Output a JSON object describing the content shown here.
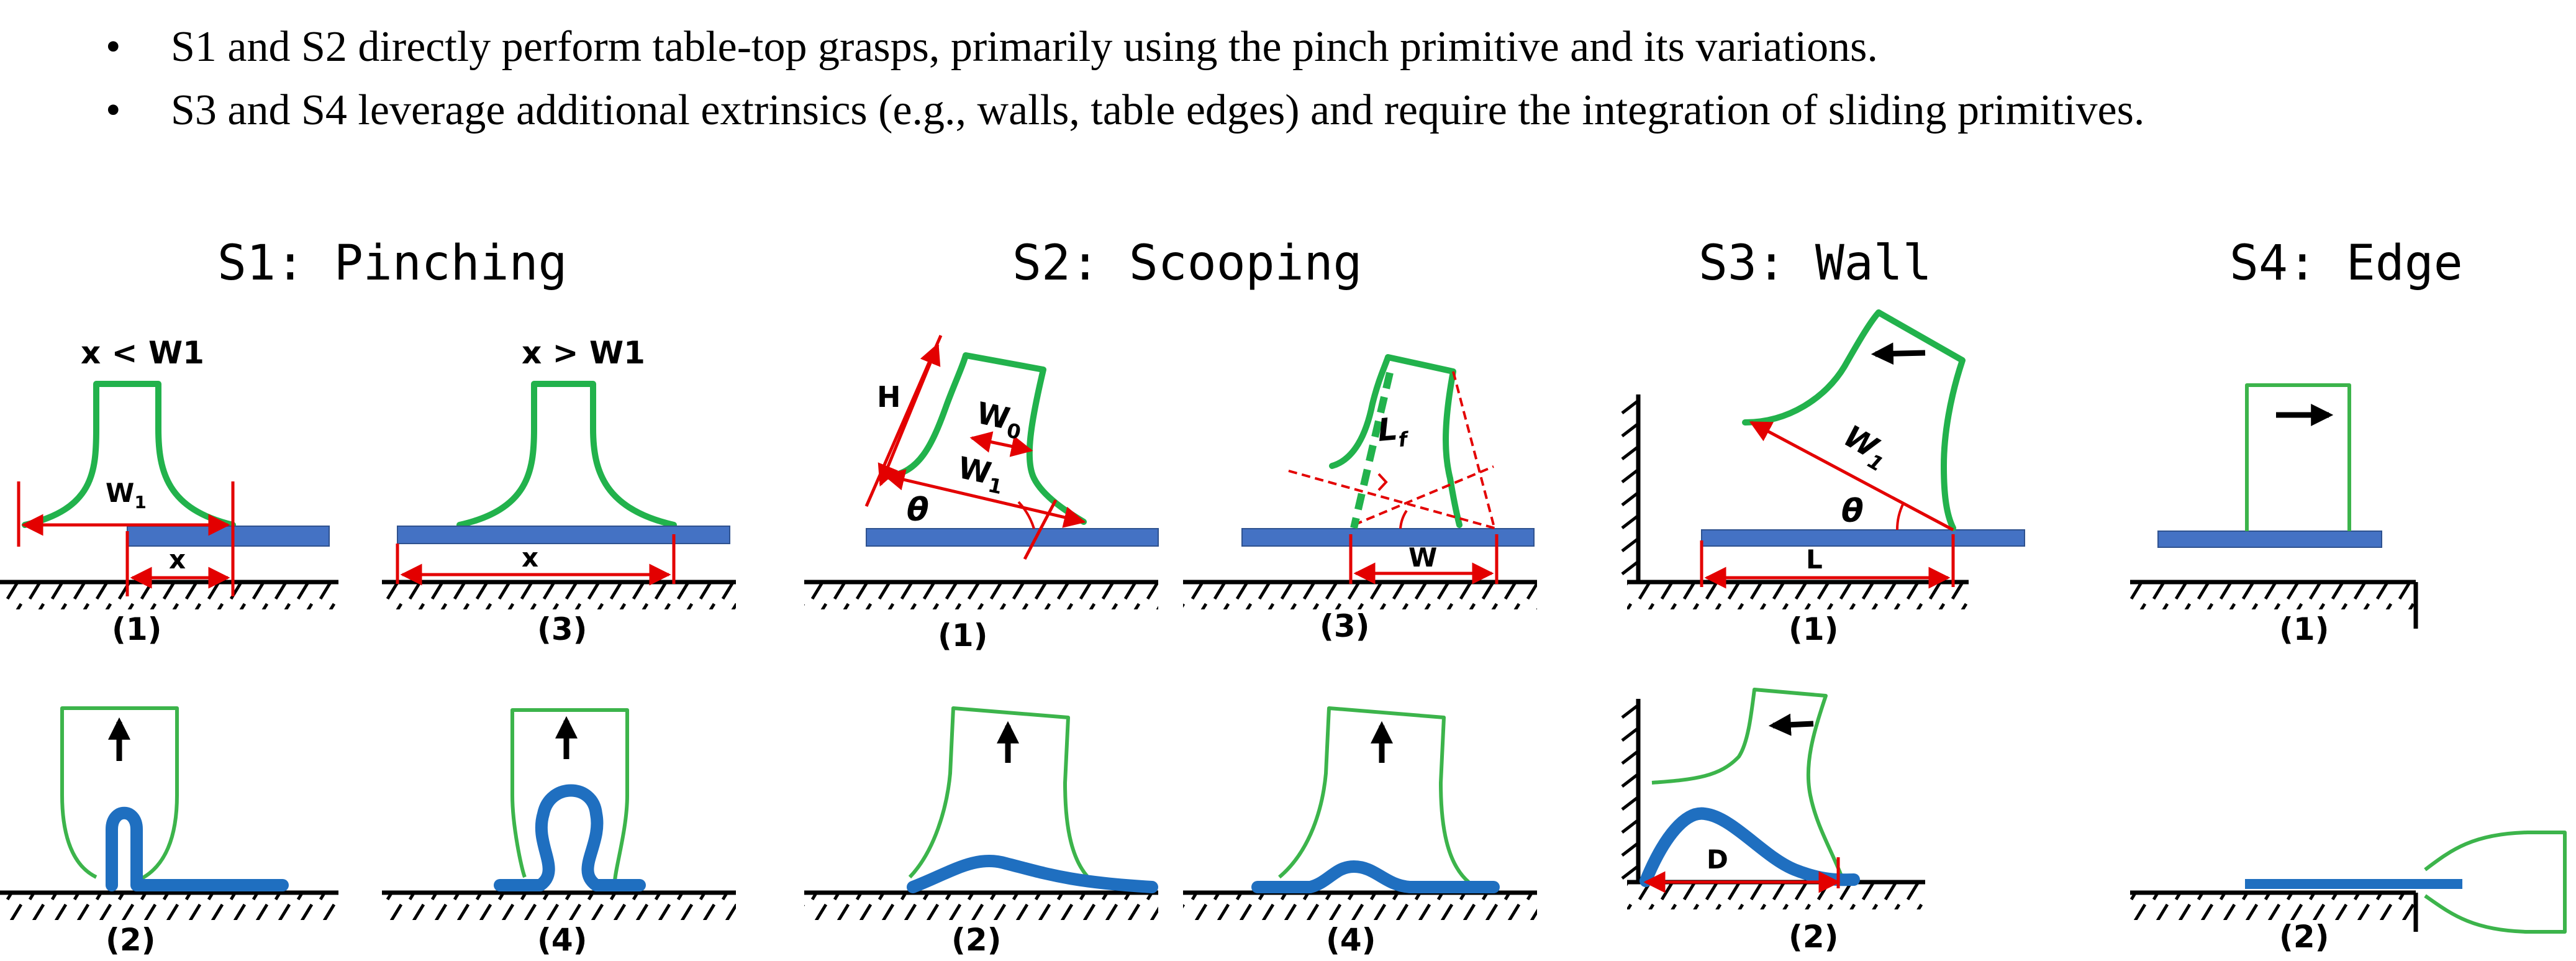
{
  "bullets": [
    "S1 and S2 directly perform table-top grasps, primarily using the pinch primitive and its variations.",
    "S3 and S4 leverage additional extrinsics (e.g., walls, table edges) and require the integration of sliding primitives."
  ],
  "bullet_symbol": "•",
  "strategies": {
    "s1": "S1: Pinching",
    "s2": "S2: Scooping",
    "s3": "S3: Wall",
    "s4": "S4: Edge"
  },
  "conditions": {
    "lt": "x < W1",
    "gt": "x > W1"
  },
  "panel_labels": {
    "p1": "(1)",
    "p2": "(2)",
    "p3": "(3)",
    "p4": "(4)"
  },
  "dims": {
    "x": "x",
    "W": "W",
    "H": "H",
    "L": "L",
    "D": "D",
    "W0": "W",
    "W0_sub": "0",
    "W1": "W",
    "W1_sub": "1",
    "Lf": "L",
    "Lf_sub": "f",
    "theta": "θ"
  },
  "colors": {
    "gripper": "#22b24c",
    "object": "#1f6fc0",
    "plate": "#4472c4",
    "dimension": "#e30000"
  }
}
